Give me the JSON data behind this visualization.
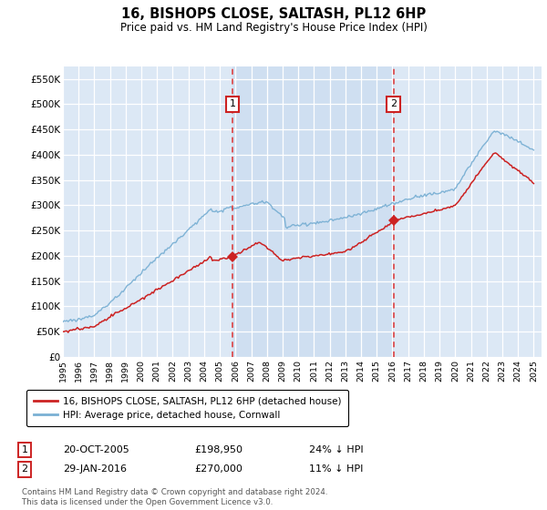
{
  "title": "16, BISHOPS CLOSE, SALTASH, PL12 6HP",
  "subtitle": "Price paid vs. HM Land Registry's House Price Index (HPI)",
  "legend_line1": "16, BISHOPS CLOSE, SALTASH, PL12 6HP (detached house)",
  "legend_line2": "HPI: Average price, detached house, Cornwall",
  "footnote": "Contains HM Land Registry data © Crown copyright and database right 2024.\nThis data is licensed under the Open Government Licence v3.0.",
  "transaction1_label": "1",
  "transaction1_date": "20-OCT-2005",
  "transaction1_price": "£198,950",
  "transaction1_hpi": "24% ↓ HPI",
  "transaction2_label": "2",
  "transaction2_date": "29-JAN-2016",
  "transaction2_price": "£270,000",
  "transaction2_hpi": "11% ↓ HPI",
  "ylim": [
    0,
    575000
  ],
  "yticks": [
    0,
    50000,
    100000,
    150000,
    200000,
    250000,
    300000,
    350000,
    400000,
    450000,
    500000,
    550000
  ],
  "ytick_labels": [
    "£0",
    "£50K",
    "£100K",
    "£150K",
    "£200K",
    "£250K",
    "£300K",
    "£350K",
    "£400K",
    "£450K",
    "£500K",
    "£550K"
  ],
  "background_color": "#dce8f5",
  "shaded_color": "#ccddf0",
  "red_color": "#cc2222",
  "blue_color": "#7ab0d4",
  "marker1_x": 2005.8,
  "marker1_y": 198950,
  "marker2_x": 2016.08,
  "marker2_y": 270000,
  "xlim_left": 1995,
  "xlim_right": 2025.5
}
